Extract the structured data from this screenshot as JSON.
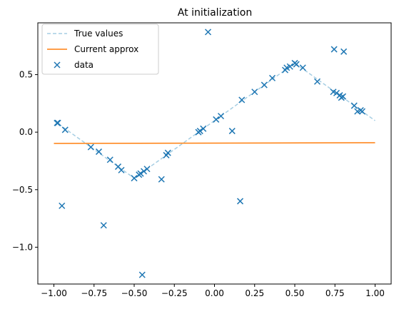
{
  "chart_data": {
    "type": "line",
    "title": "At initialization",
    "xlabel": "",
    "ylabel": "",
    "xlim": [
      -1.1,
      1.1
    ],
    "ylim": [
      -1.32,
      0.95
    ],
    "grid": false,
    "legend_position": "top-left",
    "x_ticks": [
      -1.0,
      -0.75,
      -0.5,
      -0.25,
      0.0,
      0.25,
      0.5,
      0.75,
      1.0
    ],
    "x_tick_labels": [
      "−1.00",
      "−0.75",
      "−0.50",
      "−0.25",
      "0.00",
      "0.25",
      "0.50",
      "0.75",
      "1.00"
    ],
    "y_ticks": [
      -1.0,
      -0.5,
      0.0,
      0.5
    ],
    "y_tick_labels": [
      "−1.0",
      "−0.5",
      "0.0",
      "0.5"
    ],
    "series": [
      {
        "name": "True values",
        "kind": "line",
        "style": "dashed",
        "color": "#a6cee3",
        "x": [
          -1.0,
          -0.5,
          0.5,
          1.0
        ],
        "y": [
          0.1,
          -0.4,
          0.6,
          0.1
        ]
      },
      {
        "name": "Current approx",
        "kind": "line",
        "style": "solid",
        "color": "#ff7f0e",
        "x": [
          -1.0,
          1.0
        ],
        "y": [
          -0.098,
          -0.092
        ]
      },
      {
        "name": "data",
        "kind": "scatter",
        "marker": "x",
        "color": "#1f77b4",
        "points": [
          [
            -0.98,
            0.08
          ],
          [
            -0.975,
            0.08
          ],
          [
            -0.95,
            -0.64
          ],
          [
            -0.93,
            0.02
          ],
          [
            -0.77,
            -0.13
          ],
          [
            -0.72,
            -0.17
          ],
          [
            -0.69,
            -0.81
          ],
          [
            -0.65,
            -0.24
          ],
          [
            -0.6,
            -0.3
          ],
          [
            -0.58,
            -0.33
          ],
          [
            -0.5,
            -0.4
          ],
          [
            -0.47,
            -0.37
          ],
          [
            -0.46,
            -0.36
          ],
          [
            -0.45,
            -1.24
          ],
          [
            -0.44,
            -0.34
          ],
          [
            -0.42,
            -0.32
          ],
          [
            -0.33,
            -0.41
          ],
          [
            -0.3,
            -0.2
          ],
          [
            -0.29,
            -0.18
          ],
          [
            -0.1,
            0.0
          ],
          [
            -0.09,
            0.01
          ],
          [
            -0.07,
            0.03
          ],
          [
            -0.04,
            0.87
          ],
          [
            0.01,
            0.11
          ],
          [
            0.04,
            0.14
          ],
          [
            0.11,
            0.01
          ],
          [
            0.16,
            -0.6
          ],
          [
            0.17,
            0.28
          ],
          [
            0.25,
            0.35
          ],
          [
            0.31,
            0.41
          ],
          [
            0.36,
            0.47
          ],
          [
            0.44,
            0.54
          ],
          [
            0.45,
            0.56
          ],
          [
            0.47,
            0.57
          ],
          [
            0.5,
            0.6
          ],
          [
            0.51,
            0.59
          ],
          [
            0.55,
            0.56
          ],
          [
            0.64,
            0.44
          ],
          [
            0.74,
            0.35
          ],
          [
            0.745,
            0.72
          ],
          [
            0.76,
            0.34
          ],
          [
            0.78,
            0.32
          ],
          [
            0.79,
            0.3
          ],
          [
            0.8,
            0.31
          ],
          [
            0.805,
            0.7
          ],
          [
            0.87,
            0.23
          ],
          [
            0.89,
            0.18
          ],
          [
            0.91,
            0.19
          ],
          [
            0.92,
            0.18
          ]
        ]
      }
    ]
  }
}
